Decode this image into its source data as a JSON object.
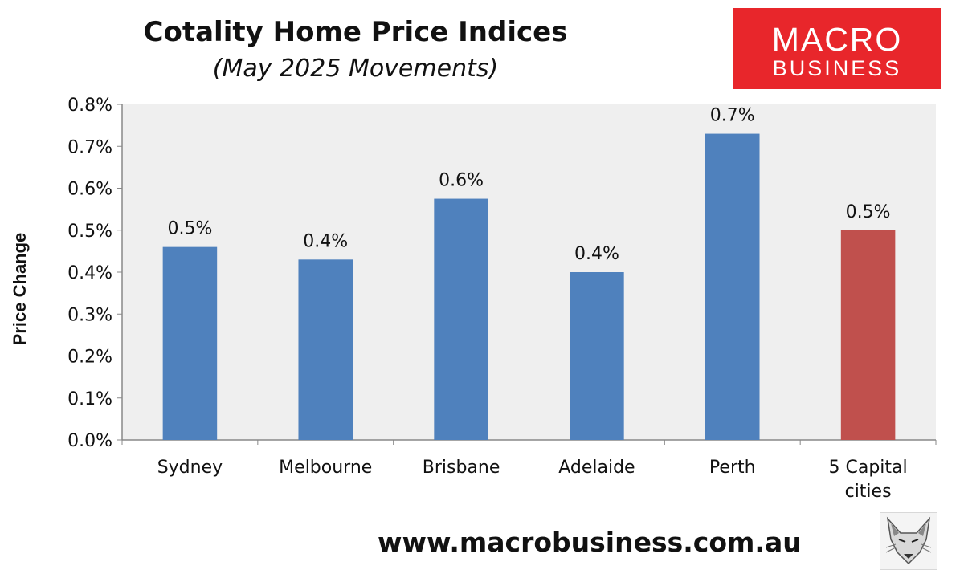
{
  "chart_data": {
    "type": "bar",
    "title": "Cotality Home Price Indices",
    "subtitle": "(May 2025 Movements)",
    "ylabel": "Price Change",
    "xlabel": "",
    "categories": [
      "Sydney",
      "Melbourne",
      "Brisbane",
      "Adelaide",
      "Perth",
      "5 Capital cities"
    ],
    "category_lines": [
      [
        "Sydney"
      ],
      [
        "Melbourne"
      ],
      [
        "Brisbane"
      ],
      [
        "Adelaide"
      ],
      [
        "Perth"
      ],
      [
        "5 Capital",
        "cities"
      ]
    ],
    "values": [
      0.46,
      0.43,
      0.575,
      0.4,
      0.73,
      0.5
    ],
    "data_labels": [
      "0.5%",
      "0.4%",
      "0.6%",
      "0.4%",
      "0.7%",
      "0.5%"
    ],
    "bar_colors": [
      "#4f81bd",
      "#4f81bd",
      "#4f81bd",
      "#4f81bd",
      "#4f81bd",
      "#c0504d"
    ],
    "ylim": [
      0,
      0.8
    ],
    "yticks": [
      0,
      0.1,
      0.2,
      0.3,
      0.4,
      0.5,
      0.6,
      0.7,
      0.8
    ],
    "ytick_labels": [
      "0.0%",
      "0.1%",
      "0.2%",
      "0.3%",
      "0.4%",
      "0.5%",
      "0.6%",
      "0.7%",
      "0.8%"
    ],
    "grid": false,
    "legend": "none",
    "plot_background": "#efefef"
  },
  "logo": {
    "line1": "MACRO",
    "line2": "BUSINESS",
    "color": "#e8262b"
  },
  "footer": {
    "url": "www.macrobusiness.com.au"
  },
  "fox_icon": "fox-head-icon"
}
